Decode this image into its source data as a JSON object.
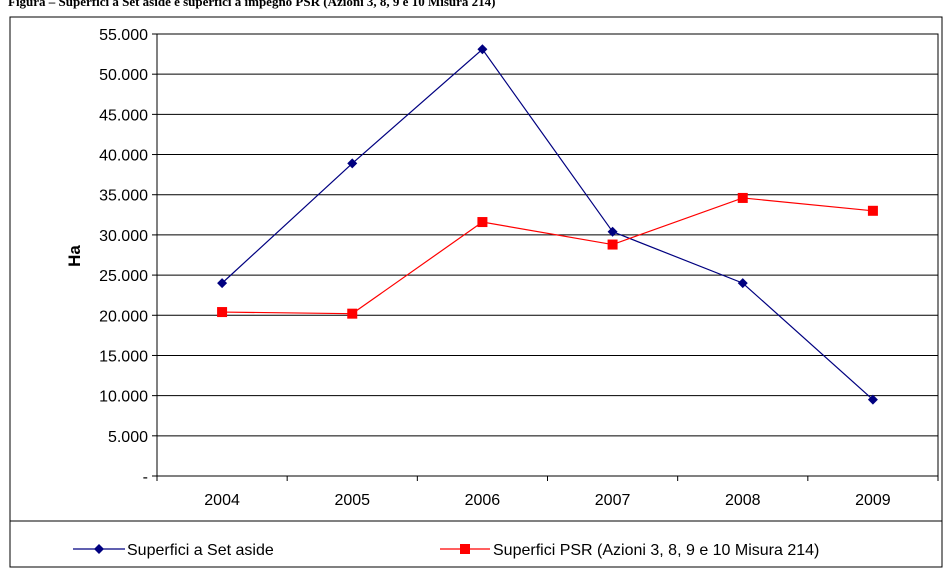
{
  "figure": {
    "caption": "Figura – Superfici a Set aside e superfici a impegno PSR (Azioni 3, 8, 9 e 10 Misura 214)"
  },
  "colors": {
    "series_blue": "#000080",
    "series_red": "#ff0000",
    "grid": "#000000",
    "background": "#ffffff"
  },
  "chart_data": {
    "type": "line",
    "categories": [
      "2004",
      "2005",
      "2006",
      "2007",
      "2008",
      "2009"
    ],
    "ylabel": "Ha",
    "ylim": [
      0,
      55000
    ],
    "yticks": [
      0,
      5000,
      10000,
      15000,
      20000,
      25000,
      30000,
      35000,
      40000,
      45000,
      50000,
      55000
    ],
    "ytick_labels": [
      "-",
      "5.000",
      "10.000",
      "15.000",
      "20.000",
      "25.000",
      "30.000",
      "35.000",
      "40.000",
      "45.000",
      "50.000",
      "55.000"
    ],
    "grid": true,
    "legend_position": "bottom",
    "series": [
      {
        "name": "Superfici a Set aside",
        "marker": "diamond",
        "color": "#000080",
        "values": [
          24000,
          38900,
          53100,
          30400,
          24000,
          9500
        ]
      },
      {
        "name": "Superfici PSR (Azioni 3, 8, 9 e 10 Misura 214)",
        "marker": "square",
        "color": "#ff0000",
        "values": [
          20400,
          20200,
          31600,
          28800,
          34600,
          33000
        ]
      }
    ]
  }
}
